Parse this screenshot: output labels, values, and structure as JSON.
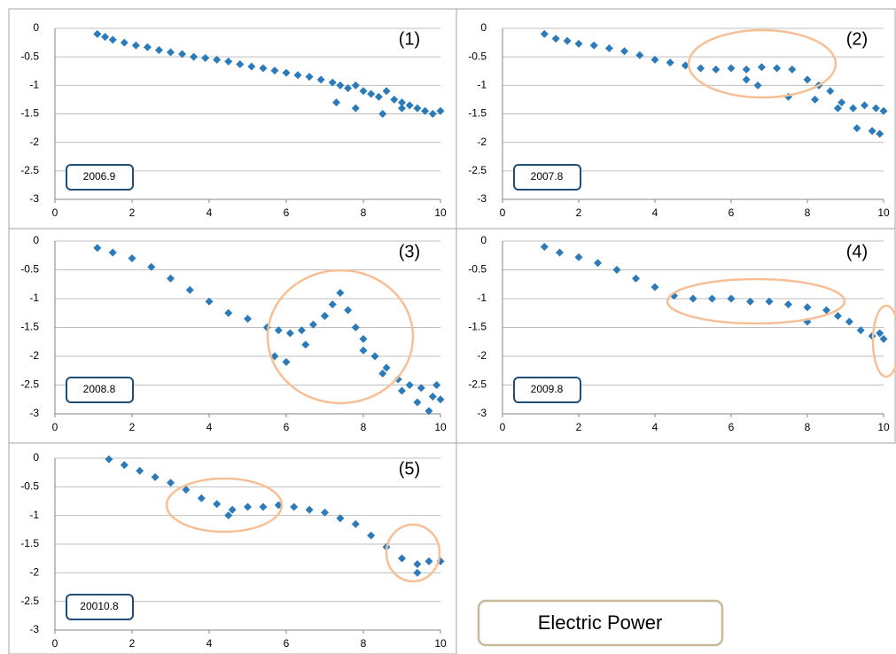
{
  "caption": "Electric Power",
  "chart_data": [
    {
      "type": "scatter",
      "label": "(1)",
      "date_label": "2006.9",
      "color": "#2b7bba",
      "xlim": [
        0,
        10
      ],
      "ylim": [
        -3,
        0
      ],
      "xticks": [
        0,
        2,
        4,
        6,
        8,
        10
      ],
      "yticks": [
        0,
        -0.5,
        -1,
        -1.5,
        -2,
        -2.5,
        -3
      ],
      "grid": true,
      "x": [
        1.1,
        1.3,
        1.5,
        1.8,
        2.1,
        2.4,
        2.7,
        3.0,
        3.3,
        3.6,
        3.9,
        4.2,
        4.5,
        4.8,
        5.1,
        5.4,
        5.7,
        6.0,
        6.3,
        6.6,
        6.9,
        7.2,
        7.4,
        7.6,
        7.8,
        8.0,
        8.2,
        8.4,
        8.6,
        8.8,
        9.0,
        9.2,
        9.4,
        9.6,
        9.8,
        10.0,
        7.3,
        7.8,
        8.5,
        9.0
      ],
      "values": [
        -0.1,
        -0.15,
        -0.2,
        -0.25,
        -0.3,
        -0.33,
        -0.38,
        -0.42,
        -0.45,
        -0.5,
        -0.52,
        -0.55,
        -0.58,
        -0.63,
        -0.67,
        -0.7,
        -0.74,
        -0.78,
        -0.82,
        -0.85,
        -0.9,
        -0.95,
        -1.0,
        -1.05,
        -1.0,
        -1.1,
        -1.15,
        -1.2,
        -1.1,
        -1.25,
        -1.3,
        -1.35,
        -1.4,
        -1.45,
        -1.5,
        -1.45,
        -1.3,
        -1.4,
        -1.5,
        -1.4
      ]
    },
    {
      "type": "scatter",
      "label": "(2)",
      "date_label": "2007.8",
      "color": "#2b7bba",
      "xlim": [
        0,
        10
      ],
      "ylim": [
        -3,
        0
      ],
      "xticks": [
        0,
        2,
        4,
        6,
        8,
        10
      ],
      "yticks": [
        0,
        -0.5,
        -1,
        -1.5,
        -2,
        -2.5,
        -3
      ],
      "grid": true,
      "x": [
        1.1,
        1.4,
        1.7,
        2.0,
        2.4,
        2.8,
        3.2,
        3.6,
        4.0,
        4.4,
        4.8,
        5.2,
        5.6,
        6.0,
        6.4,
        6.8,
        7.2,
        7.6,
        8.0,
        8.3,
        8.6,
        8.9,
        9.2,
        9.5,
        9.8,
        10.0,
        6.4,
        6.7,
        7.5,
        8.2,
        8.8,
        9.3,
        9.7,
        9.9
      ],
      "values": [
        -0.1,
        -0.18,
        -0.22,
        -0.27,
        -0.3,
        -0.35,
        -0.4,
        -0.47,
        -0.55,
        -0.6,
        -0.65,
        -0.7,
        -0.72,
        -0.7,
        -0.72,
        -0.68,
        -0.7,
        -0.72,
        -0.9,
        -1.0,
        -1.1,
        -1.3,
        -1.4,
        -1.35,
        -1.4,
        -1.45,
        -0.9,
        -1.0,
        -1.2,
        -1.25,
        -1.4,
        -1.75,
        -1.8,
        -1.85
      ]
    },
    {
      "type": "scatter",
      "label": "(3)",
      "date_label": "2008.8",
      "color": "#2b7bba",
      "xlim": [
        0,
        10
      ],
      "ylim": [
        -3,
        0
      ],
      "xticks": [
        0,
        2,
        4,
        6,
        8,
        10
      ],
      "yticks": [
        0,
        -0.5,
        -1,
        -1.5,
        -2,
        -2.5,
        -3
      ],
      "grid": true,
      "x": [
        1.1,
        1.5,
        2.0,
        2.5,
        3.0,
        3.5,
        4.0,
        4.5,
        5.0,
        5.5,
        5.8,
        6.1,
        6.4,
        6.7,
        7.0,
        7.2,
        7.4,
        7.6,
        7.8,
        8.0,
        8.3,
        8.6,
        8.9,
        9.2,
        9.5,
        9.8,
        10.0,
        5.7,
        6.0,
        6.5,
        7.0,
        8.0,
        8.5,
        9.0,
        9.4,
        9.7,
        9.9
      ],
      "values": [
        -0.12,
        -0.2,
        -0.3,
        -0.45,
        -0.65,
        -0.85,
        -1.05,
        -1.25,
        -1.35,
        -1.5,
        -1.55,
        -1.6,
        -1.55,
        -1.45,
        -1.3,
        -1.1,
        -0.9,
        -1.2,
        -1.5,
        -1.7,
        -2.0,
        -2.2,
        -2.4,
        -2.5,
        -2.55,
        -2.7,
        -2.75,
        -2.0,
        -2.1,
        -1.8,
        -1.3,
        -1.9,
        -2.3,
        -2.6,
        -2.8,
        -2.95,
        -2.5
      ]
    },
    {
      "type": "scatter",
      "label": "(4)",
      "date_label": "2009.8",
      "color": "#2b7bba",
      "xlim": [
        0,
        10
      ],
      "ylim": [
        -3,
        0
      ],
      "xticks": [
        0,
        2,
        4,
        6,
        8,
        10
      ],
      "yticks": [
        0,
        -0.5,
        -1,
        -1.5,
        -2,
        -2.5,
        -3
      ],
      "grid": true,
      "x": [
        1.1,
        1.5,
        2.0,
        2.5,
        3.0,
        3.5,
        4.0,
        4.5,
        5.0,
        5.5,
        6.0,
        6.5,
        7.0,
        7.5,
        8.0,
        8.5,
        8.8,
        9.1,
        9.4,
        9.7,
        10.0,
        8.0,
        9.9
      ],
      "values": [
        -0.1,
        -0.2,
        -0.28,
        -0.38,
        -0.5,
        -0.65,
        -0.8,
        -0.95,
        -1.0,
        -1.0,
        -1.0,
        -1.05,
        -1.05,
        -1.1,
        -1.15,
        -1.2,
        -1.3,
        -1.4,
        -1.55,
        -1.65,
        -1.7,
        -1.4,
        -1.6
      ]
    },
    {
      "type": "scatter",
      "label": "(5)",
      "date_label": "20010.8",
      "color": "#2b7bba",
      "xlim": [
        0,
        10
      ],
      "ylim": [
        -3,
        0
      ],
      "xticks": [
        0,
        2,
        4,
        6,
        8,
        10
      ],
      "yticks": [
        0,
        -0.5,
        -1,
        -1.5,
        -2,
        -2.5,
        -3
      ],
      "grid": true,
      "x": [
        1.4,
        1.8,
        2.2,
        2.6,
        3.0,
        3.4,
        3.8,
        4.2,
        4.6,
        5.0,
        5.4,
        5.8,
        6.2,
        6.6,
        7.0,
        7.4,
        7.8,
        8.2,
        8.6,
        9.0,
        9.4,
        9.7,
        10.0,
        4.5,
        9.4
      ],
      "values": [
        -0.02,
        -0.12,
        -0.22,
        -0.33,
        -0.43,
        -0.55,
        -0.7,
        -0.8,
        -0.9,
        -0.85,
        -0.85,
        -0.82,
        -0.85,
        -0.9,
        -0.95,
        -1.05,
        -1.15,
        -1.35,
        -1.55,
        -1.75,
        -1.85,
        -1.8,
        -1.8,
        -1.0,
        -2.0
      ]
    }
  ]
}
